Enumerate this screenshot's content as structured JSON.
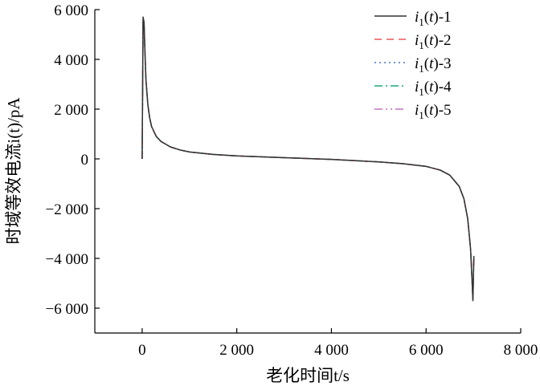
{
  "chart_data": {
    "type": "line",
    "xlabel": "老化时间t/s",
    "ylabel": "时域等效电流i(t)/pA",
    "xlim": [
      -1000,
      8000
    ],
    "ylim": [
      -7000,
      6000
    ],
    "x_ticks": [
      0,
      2000,
      4000,
      6000,
      8000
    ],
    "x_tick_labels": [
      "0",
      "2 000",
      "4 000",
      "6 000",
      "8 000"
    ],
    "y_ticks": [
      6000,
      4000,
      2000,
      0,
      -2000,
      -4000,
      -6000
    ],
    "y_tick_labels": [
      "6 000",
      "4 000",
      "2 000",
      "0",
      "−2 000",
      "−4 000",
      "−6 000"
    ],
    "legend_position": "top-right",
    "grid": false,
    "x": [
      0,
      20,
      40,
      60,
      80,
      120,
      160,
      200,
      300,
      400,
      600,
      800,
      1000,
      1500,
      2000,
      3000,
      4000,
      5000,
      5500,
      6000,
      6300,
      6500,
      6700,
      6800,
      6880,
      6940,
      6970,
      6990,
      7000,
      7010
    ],
    "series": [
      {
        "name": "i1(t)-1",
        "color": "#333333",
        "dash": "",
        "values": [
          0,
          5700,
          5500,
          4300,
          3200,
          2200,
          1650,
          1300,
          900,
          700,
          480,
          360,
          280,
          180,
          120,
          50,
          -20,
          -120,
          -190,
          -300,
          -450,
          -650,
          -1100,
          -1600,
          -2400,
          -3600,
          -4800,
          -5700,
          -4800,
          -3900
        ]
      },
      {
        "name": "i1(t)-2",
        "color": "#e8595a",
        "dash": "9 6",
        "values": [
          0,
          5650,
          5450,
          4250,
          3180,
          2180,
          1640,
          1290,
          895,
          698,
          478,
          358,
          279,
          179,
          119,
          50,
          -20,
          -121,
          -191,
          -302,
          -452,
          -652,
          -1105,
          -1605,
          -2410,
          -3620,
          -4820,
          -5650,
          -4780,
          -3900
        ]
      },
      {
        "name": "i1(t)-3",
        "color": "#4472c4",
        "dash": "2 4",
        "values": [
          0,
          5600,
          5420,
          4220,
          3160,
          2170,
          1630,
          1285,
          893,
          696,
          477,
          357,
          278,
          178,
          118,
          49,
          -21,
          -122,
          -192,
          -303,
          -454,
          -655,
          -1110,
          -1610,
          -2420,
          -3630,
          -4830,
          -5680,
          -4790,
          -3900
        ]
      },
      {
        "name": "i1(t)-4",
        "color": "#1aa57d",
        "dash": "10 4 2 4",
        "values": [
          0,
          5620,
          5440,
          4240,
          3170,
          2175,
          1635,
          1288,
          894,
          697,
          478,
          358,
          279,
          179,
          119,
          50,
          -20,
          -121,
          -191,
          -301,
          -451,
          -651,
          -1103,
          -1603,
          -2405,
          -3610,
          -4810,
          -5690,
          -4800,
          -3900
        ]
      },
      {
        "name": "i1(t)-5",
        "color": "#c070c0",
        "dash": "10 4 2 4 2 4",
        "values": [
          0,
          5580,
          5400,
          4200,
          3150,
          2160,
          1625,
          1282,
          891,
          695,
          476,
          356,
          277,
          177,
          117,
          49,
          -21,
          -123,
          -193,
          -304,
          -455,
          -657,
          -1112,
          -1612,
          -2425,
          -3640,
          -4840,
          -5660,
          -4770,
          -3900
        ]
      }
    ]
  }
}
